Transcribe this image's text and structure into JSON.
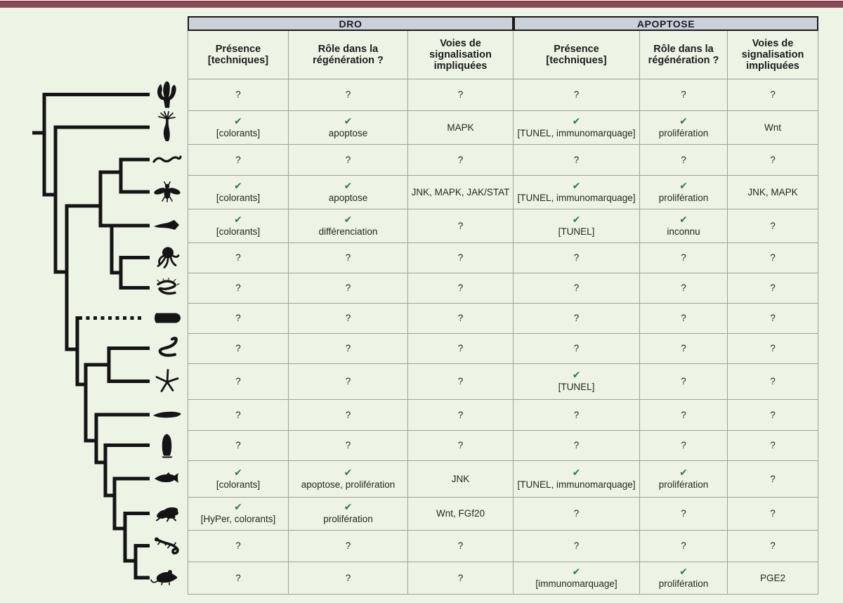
{
  "figure": {
    "description": "Phylogenetic tree of animals with comparative table of ROS (DRO) and apoptosis data in regeneration",
    "top_bar_color": "#8d4a56",
    "background_color": "#eef4e5"
  },
  "colors": {
    "check_green": "#2e7b4e",
    "group_header_bg": "#cad1d9",
    "grid_line": "#9aa19b",
    "text": "#26261f",
    "tree_line": "#141414"
  },
  "table": {
    "group_headers": [
      {
        "label": "DRO"
      },
      {
        "label": "APOPTOSE"
      }
    ],
    "sub_headers": [
      {
        "label": "Présence\n[techniques]"
      },
      {
        "label": "Rôle dans la\nrégénération ?"
      },
      {
        "label": "Voies de\nsignalisation\nimpliquées"
      },
      {
        "label": "Présence\n[techniques]"
      },
      {
        "label": "Rôle dans la\nrégénération ?"
      },
      {
        "label": "Voies de\nsignalisation\nimpliquées"
      }
    ],
    "unknown_marker": "?",
    "rows": [
      {
        "icon": "sponge-icon",
        "cells": [
          {
            "check": false,
            "text": "?"
          },
          {
            "check": false,
            "text": "?"
          },
          {
            "check": false,
            "text": "?"
          },
          {
            "check": false,
            "text": "?"
          },
          {
            "check": false,
            "text": "?"
          },
          {
            "check": false,
            "text": "?"
          }
        ]
      },
      {
        "icon": "hydra-icon",
        "cells": [
          {
            "check": true,
            "text": "[colorants]"
          },
          {
            "check": true,
            "text": "apoptose"
          },
          {
            "check": false,
            "text": "MAPK"
          },
          {
            "check": true,
            "text": "[TUNEL, immunomarquage]"
          },
          {
            "check": true,
            "text": "prolifération"
          },
          {
            "check": false,
            "text": "Wnt"
          }
        ]
      },
      {
        "icon": "nematode-icon",
        "cells": [
          {
            "check": false,
            "text": "?"
          },
          {
            "check": false,
            "text": "?"
          },
          {
            "check": false,
            "text": "?"
          },
          {
            "check": false,
            "text": "?"
          },
          {
            "check": false,
            "text": "?"
          },
          {
            "check": false,
            "text": "?"
          }
        ]
      },
      {
        "icon": "fly-icon",
        "cells": [
          {
            "check": true,
            "text": "[colorants]"
          },
          {
            "check": true,
            "text": "apoptose"
          },
          {
            "check": false,
            "text": "JNK, MAPK, JAK/STAT"
          },
          {
            "check": true,
            "text": "[TUNEL, immunomarquage]"
          },
          {
            "check": true,
            "text": "prolifération"
          },
          {
            "check": false,
            "text": "JNK, MAPK"
          }
        ]
      },
      {
        "icon": "planarian-icon",
        "cells": [
          {
            "check": true,
            "text": "[colorants]"
          },
          {
            "check": true,
            "text": "différenciation"
          },
          {
            "check": false,
            "text": "?"
          },
          {
            "check": true,
            "text": "[TUNEL]"
          },
          {
            "check": true,
            "text": "inconnu"
          },
          {
            "check": false,
            "text": "?"
          }
        ]
      },
      {
        "icon": "octopus-icon",
        "cells": [
          {
            "check": false,
            "text": "?"
          },
          {
            "check": false,
            "text": "?"
          },
          {
            "check": false,
            "text": "?"
          },
          {
            "check": false,
            "text": "?"
          },
          {
            "check": false,
            "text": "?"
          },
          {
            "check": false,
            "text": "?"
          }
        ]
      },
      {
        "icon": "annelid-icon",
        "cells": [
          {
            "check": false,
            "text": "?"
          },
          {
            "check": false,
            "text": "?"
          },
          {
            "check": false,
            "text": "?"
          },
          {
            "check": false,
            "text": "?"
          },
          {
            "check": false,
            "text": "?"
          },
          {
            "check": false,
            "text": "?"
          }
        ]
      },
      {
        "icon": "acoel-icon",
        "cells": [
          {
            "check": false,
            "text": "?"
          },
          {
            "check": false,
            "text": "?"
          },
          {
            "check": false,
            "text": "?"
          },
          {
            "check": false,
            "text": "?"
          },
          {
            "check": false,
            "text": "?"
          },
          {
            "check": false,
            "text": "?"
          }
        ]
      },
      {
        "icon": "acorn-worm-icon",
        "cells": [
          {
            "check": false,
            "text": "?"
          },
          {
            "check": false,
            "text": "?"
          },
          {
            "check": false,
            "text": "?"
          },
          {
            "check": false,
            "text": "?"
          },
          {
            "check": false,
            "text": "?"
          },
          {
            "check": false,
            "text": "?"
          }
        ]
      },
      {
        "icon": "starfish-icon",
        "cells": [
          {
            "check": false,
            "text": "?"
          },
          {
            "check": false,
            "text": "?"
          },
          {
            "check": false,
            "text": "?"
          },
          {
            "check": true,
            "text": "[TUNEL]"
          },
          {
            "check": false,
            "text": "?"
          },
          {
            "check": false,
            "text": "?"
          }
        ]
      },
      {
        "icon": "lancelet-icon",
        "cells": [
          {
            "check": false,
            "text": "?"
          },
          {
            "check": false,
            "text": "?"
          },
          {
            "check": false,
            "text": "?"
          },
          {
            "check": false,
            "text": "?"
          },
          {
            "check": false,
            "text": "?"
          },
          {
            "check": false,
            "text": "?"
          }
        ]
      },
      {
        "icon": "sea-squirt-icon",
        "cells": [
          {
            "check": false,
            "text": "?"
          },
          {
            "check": false,
            "text": "?"
          },
          {
            "check": false,
            "text": "?"
          },
          {
            "check": false,
            "text": "?"
          },
          {
            "check": false,
            "text": "?"
          },
          {
            "check": false,
            "text": "?"
          }
        ]
      },
      {
        "icon": "fish-icon",
        "cells": [
          {
            "check": true,
            "text": "[colorants]"
          },
          {
            "check": true,
            "text": "apoptose, prolifération"
          },
          {
            "check": false,
            "text": "JNK"
          },
          {
            "check": true,
            "text": "[TUNEL, immunomarquage]"
          },
          {
            "check": true,
            "text": "prolifération"
          },
          {
            "check": false,
            "text": "?"
          }
        ]
      },
      {
        "icon": "frog-icon",
        "cells": [
          {
            "check": true,
            "text": "[HyPer, colorants]"
          },
          {
            "check": true,
            "text": "prolifération"
          },
          {
            "check": false,
            "text": "Wnt, FGf20"
          },
          {
            "check": false,
            "text": "?"
          },
          {
            "check": false,
            "text": "?"
          },
          {
            "check": false,
            "text": "?"
          }
        ]
      },
      {
        "icon": "lizard-icon",
        "cells": [
          {
            "check": false,
            "text": "?"
          },
          {
            "check": false,
            "text": "?"
          },
          {
            "check": false,
            "text": "?"
          },
          {
            "check": false,
            "text": "?"
          },
          {
            "check": false,
            "text": "?"
          },
          {
            "check": false,
            "text": "?"
          }
        ]
      },
      {
        "icon": "mouse-icon",
        "cells": [
          {
            "check": false,
            "text": "?"
          },
          {
            "check": false,
            "text": "?"
          },
          {
            "check": false,
            "text": "?"
          },
          {
            "check": true,
            "text": "[immunomarquage]"
          },
          {
            "check": true,
            "text": "prolifération"
          },
          {
            "check": false,
            "text": "PGE2"
          }
        ]
      }
    ]
  }
}
